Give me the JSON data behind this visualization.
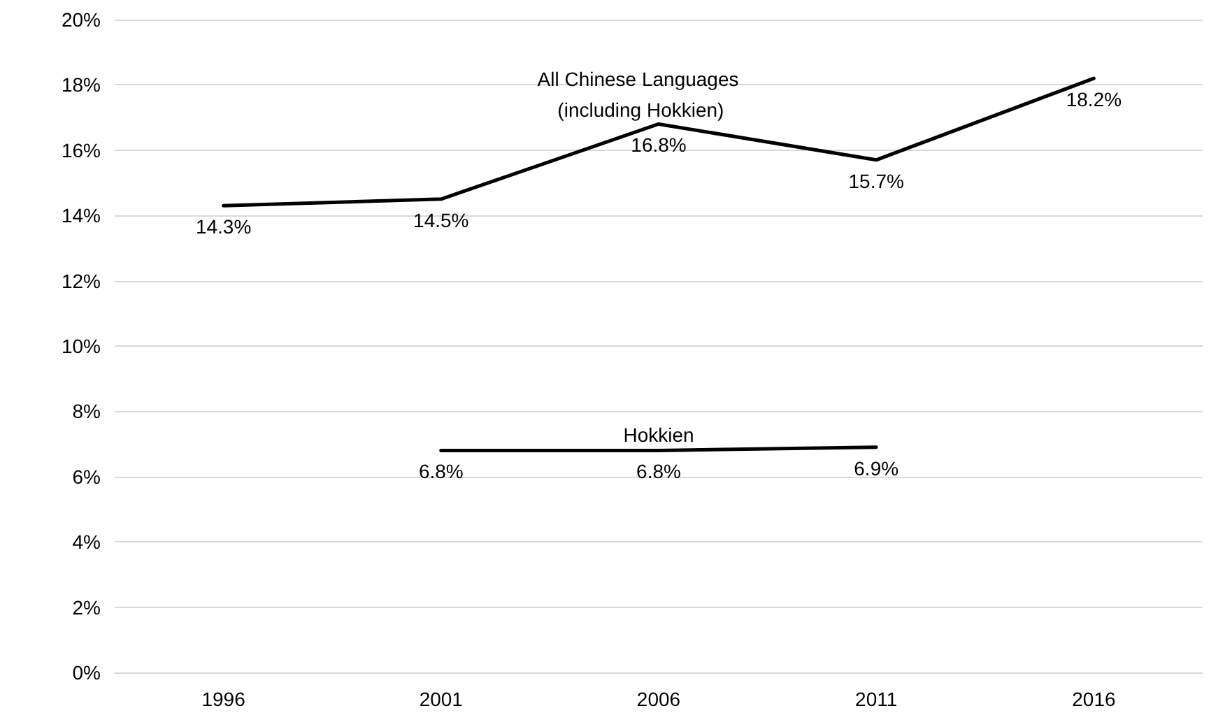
{
  "chart_data": {
    "type": "line",
    "categories": [
      "1996",
      "2001",
      "2006",
      "2011",
      "2016"
    ],
    "series": [
      {
        "name": "All Chinese Languages (including Hokkien)",
        "color": "#000000",
        "values": [
          14.3,
          14.5,
          16.8,
          15.7,
          18.2
        ],
        "value_labels": [
          "14.3%",
          "14.5%",
          "16.8%",
          "15.7%",
          "18.2%"
        ]
      },
      {
        "name": "Hokkien",
        "color": "#000000",
        "values": [
          null,
          6.8,
          6.8,
          6.9,
          null
        ],
        "value_labels": [
          null,
          "6.8%",
          "6.8%",
          "6.9%",
          null
        ]
      }
    ],
    "ylim": [
      0,
      20
    ],
    "yticks": [
      {
        "value": 0,
        "label": "0%"
      },
      {
        "value": 2,
        "label": "2%"
      },
      {
        "value": 4,
        "label": "4%"
      },
      {
        "value": 6,
        "label": "6%"
      },
      {
        "value": 8,
        "label": "8%"
      },
      {
        "value": 10,
        "label": "10%"
      },
      {
        "value": 12,
        "label": "12%"
      },
      {
        "value": 14,
        "label": "14%"
      },
      {
        "value": 16,
        "label": "16%"
      },
      {
        "value": 18,
        "label": "18%"
      },
      {
        "value": 20,
        "label": "20%"
      }
    ],
    "grid": "y",
    "legend": false,
    "marker": "none",
    "line_style": "solid"
  }
}
